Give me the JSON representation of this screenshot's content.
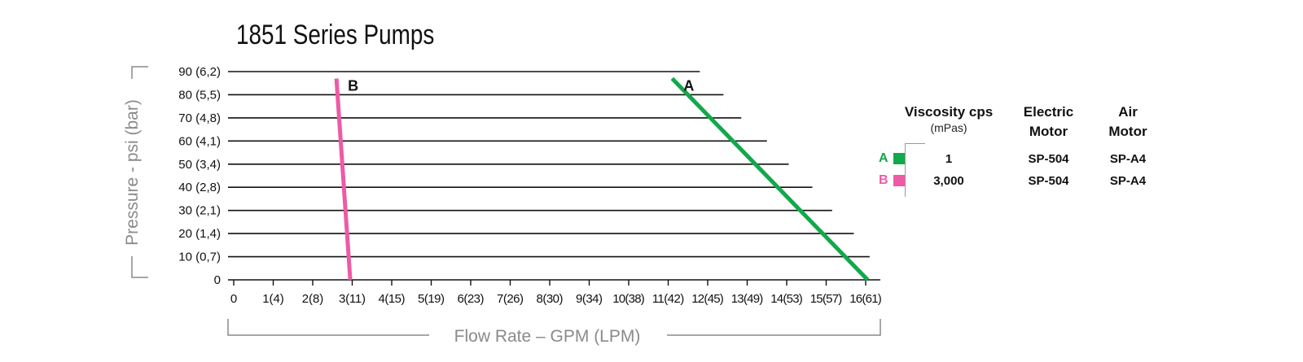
{
  "chart_data": {
    "type": "line",
    "title": "1851 Series Pumps",
    "xlabel": "Flow Rate – GPM (LPM)",
    "ylabel": "Pressure - psi (bar)",
    "xlim": [
      0,
      16
    ],
    "ylim": [
      0,
      90
    ],
    "x_ticks": [
      "0",
      "1(4)",
      "2(8)",
      "3(11)",
      "4(15)",
      "5(19)",
      "6(23)",
      "7(26)",
      "8(30)",
      "9(34)",
      "10(38)",
      "11(42)",
      "12(45)",
      "13(49)",
      "14(53)",
      "15(57)",
      "16(61)"
    ],
    "y_ticks": [
      {
        "value": 0,
        "label": "0"
      },
      {
        "value": 10,
        "label": "10  (0,7)"
      },
      {
        "value": 20,
        "label": "20  (1,4)"
      },
      {
        "value": 30,
        "label": "30  (2,1)"
      },
      {
        "value": 40,
        "label": "40  (2,8)"
      },
      {
        "value": 50,
        "label": "50  (3,4)"
      },
      {
        "value": 60,
        "label": "60  (4,1)"
      },
      {
        "value": 70,
        "label": "70  (4,8)"
      },
      {
        "value": 80,
        "label": "80  (5,5)"
      },
      {
        "value": 90,
        "label": "90  (6,2)"
      }
    ],
    "gridlines": [
      {
        "y": 90,
        "x_end": 11.8
      },
      {
        "y": 80,
        "x_end": 12.4
      },
      {
        "y": 70,
        "x_end": 12.85
      },
      {
        "y": 60,
        "x_end": 13.5
      },
      {
        "y": 50,
        "x_end": 14.05
      },
      {
        "y": 40,
        "x_end": 14.65
      },
      {
        "y": 30,
        "x_end": 15.15
      },
      {
        "y": 20,
        "x_end": 15.7
      },
      {
        "y": 10,
        "x_end": 16.1
      }
    ],
    "series": [
      {
        "name": "A",
        "color": "#12a84b",
        "x": [
          11.1,
          16.05
        ],
        "y": [
          87,
          0
        ]
      },
      {
        "name": "B",
        "color": "#ee5aa6",
        "x": [
          2.6,
          2.95
        ],
        "y": [
          87,
          0
        ]
      }
    ]
  },
  "legend": {
    "headers": {
      "viscosity": "Viscosity cps",
      "viscosity_unit": "(mPas)",
      "electric_1": "Electric",
      "electric_2": "Motor",
      "air_1": "Air",
      "air_2": "Motor"
    },
    "rows": [
      {
        "letter": "A",
        "color": "#12a84b",
        "viscosity": "1",
        "electric": "SP-504",
        "air": "SP-A4"
      },
      {
        "letter": "B",
        "color": "#ee5aa6",
        "viscosity": "3,000",
        "electric": "SP-504",
        "air": "SP-A4"
      }
    ]
  }
}
